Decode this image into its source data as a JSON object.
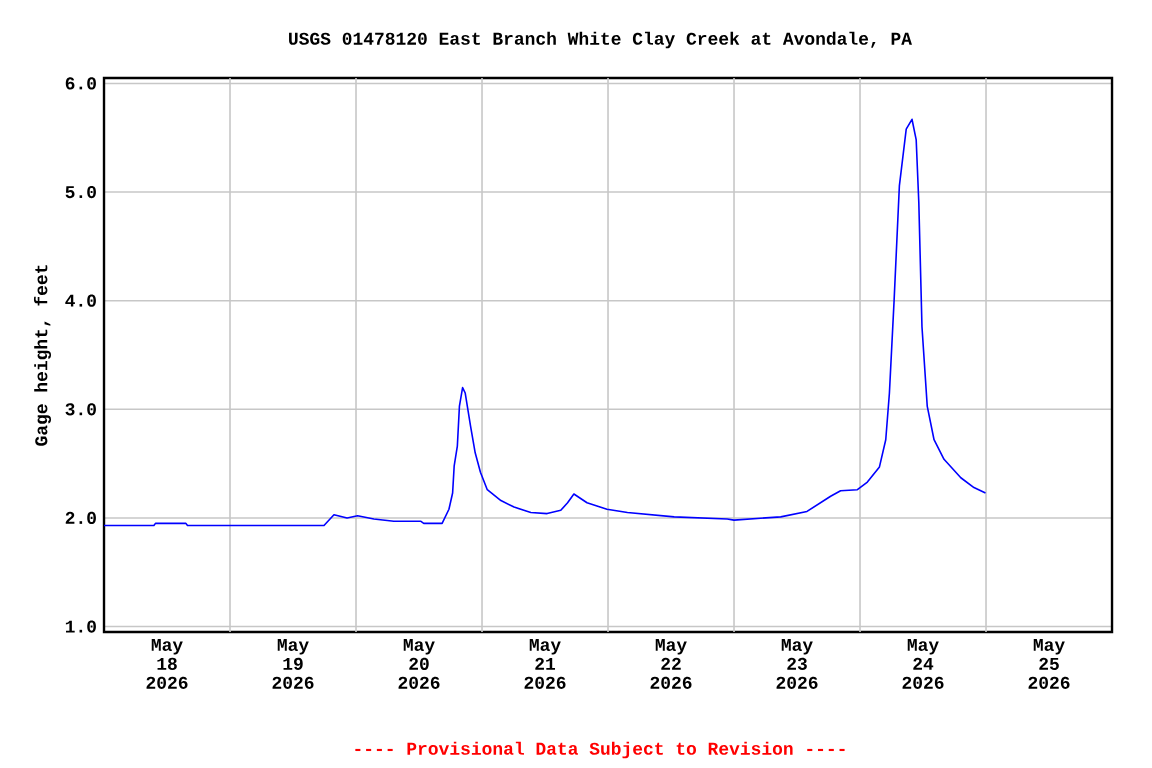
{
  "chart_data": {
    "type": "line",
    "title": "USGS 01478120 East Branch White Clay Creek at Avondale, PA",
    "ylabel": "Gage height, feet",
    "annotations": [
      "---- Provisional Data Subject to Revision ----"
    ],
    "x": [
      "2026-05-18T00:00",
      "2026-05-18T09:30",
      "2026-05-18T09:48",
      "2026-05-18T15:36",
      "2026-05-18T15:54",
      "2026-05-19T17:54",
      "2026-05-19T19:48",
      "2026-05-19T22:18",
      "2026-05-20T00:18",
      "2026-05-20T03:24",
      "2026-05-20T07:12",
      "2026-05-20T12:18",
      "2026-05-20T12:54",
      "2026-05-20T16:24",
      "2026-05-20T17:42",
      "2026-05-20T18:24",
      "2026-05-20T18:42",
      "2026-05-20T19:18",
      "2026-05-20T19:42",
      "2026-05-20T20:18",
      "2026-05-20T20:48",
      "2026-05-20T21:48",
      "2026-05-20T22:42",
      "2026-05-20T23:42",
      "2026-05-21T01:00",
      "2026-05-21T03:36",
      "2026-05-21T06:06",
      "2026-05-21T09:18",
      "2026-05-21T12:24",
      "2026-05-21T15:00",
      "2026-05-21T16:18",
      "2026-05-21T17:30",
      "2026-05-21T20:00",
      "2026-05-21T23:48",
      "2026-05-22T03:42",
      "2026-05-22T12:36",
      "2026-05-22T22:42",
      "2026-05-23T00:00",
      "2026-05-23T08:54",
      "2026-05-23T13:54",
      "2026-05-23T18:24",
      "2026-05-23T20:18",
      "2026-05-23T23:30",
      "2026-05-24T01:24",
      "2026-05-24T03:42",
      "2026-05-24T04:54",
      "2026-05-24T05:36",
      "2026-05-24T06:30",
      "2026-05-24T07:30",
      "2026-05-24T08:48",
      "2026-05-24T09:54",
      "2026-05-24T10:42",
      "2026-05-24T11:12",
      "2026-05-24T11:48",
      "2026-05-24T12:48",
      "2026-05-24T14:06",
      "2026-05-24T16:00",
      "2026-05-24T19:12",
      "2026-05-24T21:42",
      "2026-05-24T23:54"
    ],
    "values": [
      1.93,
      1.93,
      1.95,
      1.95,
      1.93,
      1.93,
      2.03,
      2.0,
      2.02,
      1.99,
      1.97,
      1.97,
      1.95,
      1.95,
      2.08,
      2.23,
      2.48,
      2.66,
      3.03,
      3.2,
      3.15,
      2.85,
      2.6,
      2.42,
      2.26,
      2.16,
      2.1,
      2.05,
      2.04,
      2.07,
      2.14,
      2.22,
      2.14,
      2.08,
      2.05,
      2.01,
      1.99,
      1.98,
      2.01,
      2.06,
      2.2,
      2.25,
      2.26,
      2.33,
      2.47,
      2.72,
      3.15,
      4.01,
      5.06,
      5.58,
      5.67,
      5.48,
      4.9,
      3.76,
      3.03,
      2.72,
      2.54,
      2.37,
      2.28,
      2.23
    ],
    "color": "#0000ff",
    "line_style": "solid",
    "grid": true,
    "xlim": [
      "2026-05-18T00:00",
      "2026-05-26T00:00"
    ],
    "xticks": [
      {
        "value": "2026-05-18T12:00",
        "label": "May 18 2026"
      },
      {
        "value": "2026-05-19T12:00",
        "label": "May 19 2026"
      },
      {
        "value": "2026-05-20T12:00",
        "label": "May 20 2026"
      },
      {
        "value": "2026-05-21T12:00",
        "label": "May 21 2026"
      },
      {
        "value": "2026-05-22T12:00",
        "label": "May 22 2026"
      },
      {
        "value": "2026-05-23T12:00",
        "label": "May 23 2026"
      },
      {
        "value": "2026-05-24T12:00",
        "label": "May 24 2026"
      },
      {
        "value": "2026-05-25T12:00",
        "label": "May 25 2026"
      },
      {
        "value": "2026-05-19T00:00",
        "label": null
      },
      {
        "value": "2026-05-20T00:00",
        "label": null
      },
      {
        "value": "2026-05-21T00:00",
        "label": null
      },
      {
        "value": "2026-05-22T00:00",
        "label": null
      },
      {
        "value": "2026-05-23T00:00",
        "label": null
      },
      {
        "value": "2026-05-24T00:00",
        "label": null
      },
      {
        "value": "2026-05-25T00:00",
        "label": null
      }
    ],
    "ylim": [
      0.95,
      6.05
    ],
    "yticks": [
      {
        "value": 1,
        "label": "1.0"
      },
      {
        "value": 2,
        "label": "2.0"
      },
      {
        "value": 3,
        "label": "3.0"
      },
      {
        "value": 4,
        "label": "4.0"
      },
      {
        "value": 5,
        "label": "5.0"
      },
      {
        "value": 6,
        "label": "6.0"
      }
    ]
  }
}
